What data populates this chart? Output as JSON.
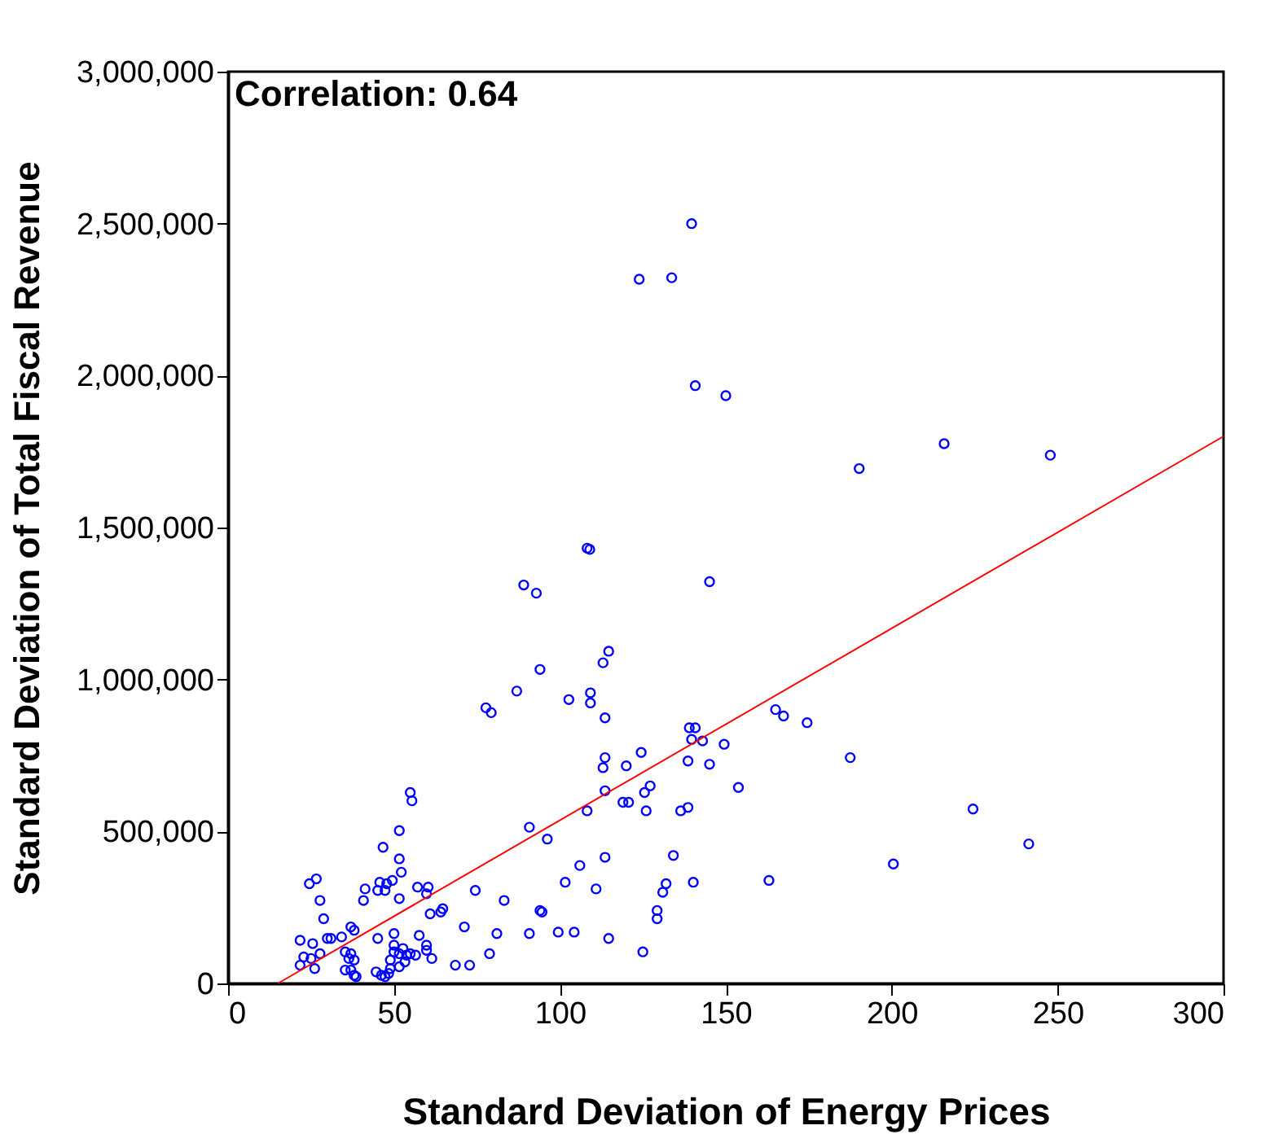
{
  "chart_data": {
    "type": "scatter",
    "xlabel": "Standard Deviation of Energy Prices",
    "ylabel": "Standard Deviation of Total Fiscal Revenue",
    "annotations": [
      "Correlation:  0.64"
    ],
    "xlim": [
      0,
      300
    ],
    "xticks": [
      0,
      50,
      100,
      150,
      200,
      250,
      300
    ],
    "ylim": [
      0,
      3000000
    ],
    "yticks": [
      0,
      {
        "value": 500000,
        "label": "500,000"
      },
      {
        "value": 1000000,
        "label": "1,000,000"
      },
      {
        "value": 1500000,
        "label": "1,500,000"
      },
      {
        "value": 2000000,
        "label": "2,000,000"
      },
      {
        "value": 2500000,
        "label": "2,500,000"
      },
      {
        "value": 3000000,
        "label": "3,000,000"
      }
    ],
    "grid": false,
    "series": [
      {
        "marker": "circle",
        "color": "#0000ff",
        "x": [
          139.7,
          123.9,
          133.7,
          140.8,
          150,
          190.2,
          215.8,
          247.8,
          108.2,
          109,
          89.1,
          92.9,
          145.1,
          114.7,
          113,
          94,
          87,
          109.2,
          109.2,
          102.7,
          77.7,
          79.3,
          113.6,
          165,
          167.4,
          174.5,
          187.5,
          224.5,
          241.3,
          200.5,
          163,
          139,
          140.8,
          139.7,
          143,
          149.5,
          124.5,
          113.6,
          113,
          120,
          138.6,
          145.1,
          127.2,
          125.5,
          113.6,
          153.8,
          119,
          120.7,
          126,
          136.4,
          138.6,
          108.2,
          96.2,
          90.8,
          113.6,
          134.2,
          106,
          101.6,
          110.9,
          132,
          131,
          140.2,
          94,
          94.6,
          129.3,
          129.3,
          90.8,
          99.5,
          104.3,
          114.7,
          125,
          54.9,
          55.4,
          51.6,
          46.7,
          51.6,
          52.2,
          24.5,
          26.6,
          45.7,
          47.8,
          49.5,
          41.3,
          45.1,
          47.3,
          57.1,
          60.3,
          59.8,
          27.7,
          40.8,
          51.6,
          74.5,
          83.2,
          60.9,
          64.1,
          64.7,
          28.8,
          37,
          38,
          71.2,
          81,
          78.8,
          21.7,
          25.5,
          29.9,
          31,
          34.2,
          45.1,
          50,
          57.6,
          59.8,
          59.8,
          61.4,
          22.8,
          25,
          27.7,
          21.7,
          26.1,
          35.3,
          37,
          36.4,
          38,
          35.3,
          37,
          38,
          38.6,
          50,
          50,
          48.9,
          51.6,
          52.7,
          53.8,
          54.9,
          56.5,
          53.3,
          51.6,
          48.9,
          44.6,
          46.2,
          48.4,
          47.3,
          68.5,
          72.8
        ],
        "values": [
          2500000,
          2317000,
          2322000,
          1967000,
          1934000,
          1694000,
          1776000,
          1738000,
          1432000,
          1428000,
          1311000,
          1284000,
          1322000,
          1093000,
          1055000,
          1033000,
          962000,
          956000,
          923000,
          934000,
          907000,
          891000,
          874000,
          901000,
          880000,
          858000,
          743000,
          574000,
          459000,
          393000,
          339000,
          841000,
          841000,
          803000,
          798000,
          787000,
          760000,
          743000,
          710000,
          716000,
          732000,
          721000,
          650000,
          628000,
          634000,
          645000,
          596000,
          596000,
          568000,
          568000,
          579000,
          568000,
          475000,
          514000,
          415000,
          421000,
          388000,
          333000,
          311000,
          328000,
          300000,
          333000,
          240000,
          235000,
          240000,
          213000,
          164000,
          169000,
          169000,
          148000,
          104000,
          628000,
          601000,
          503000,
          448000,
          410000,
          366000,
          328000,
          344000,
          333000,
          328000,
          339000,
          311000,
          306000,
          306000,
          317000,
          317000,
          295000,
          273000,
          273000,
          279000,
          306000,
          273000,
          229000,
          235000,
          246000,
          213000,
          186000,
          175000,
          186000,
          164000,
          98000,
          142000,
          131000,
          148000,
          148000,
          153000,
          148000,
          164000,
          158000,
          126000,
          109000,
          82000,
          87000,
          82000,
          98000,
          60000,
          49000,
          104000,
          98000,
          82000,
          77000,
          44000,
          44000,
          27000,
          22000,
          126000,
          104000,
          77000,
          98000,
          115000,
          93000,
          98000,
          93000,
          71000,
          55000,
          49000,
          38000,
          27000,
          33000,
          22000,
          60000,
          60000
        ]
      },
      {
        "type": "line",
        "color": "#ff0000",
        "x": [
          15,
          300
        ],
        "values": [
          0,
          1800000
        ]
      }
    ]
  }
}
